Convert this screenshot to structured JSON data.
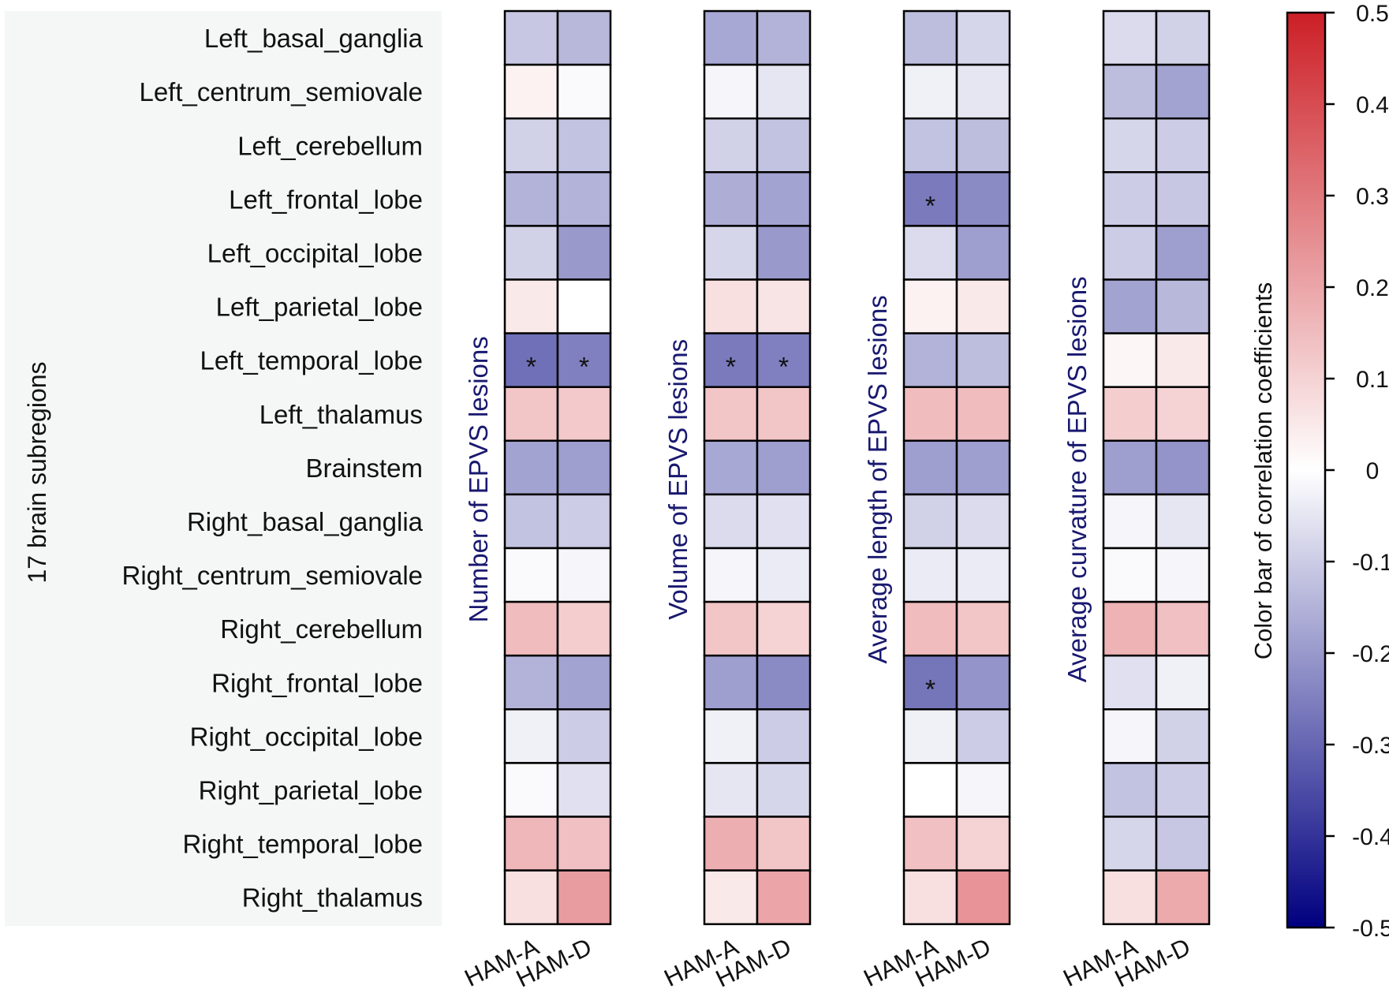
{
  "chart_data": {
    "type": "heatmap",
    "title": "",
    "ylabel": "17 brain subregions",
    "regions": [
      "Left_basal_ganglia",
      "Left_centrum_semiovale",
      "Left_cerebellum",
      "Left_frontal_lobe",
      "Left_occipital_lobe",
      "Left_parietal_lobe",
      "Left_temporal_lobe",
      "Left_thalamus",
      "Brainstem",
      "Right_basal_ganglia",
      "Right_centrum_semiovale",
      "Right_cerebellum",
      "Right_frontal_lobe",
      "Right_occipital_lobe",
      "Right_parietal_lobe",
      "Right_temporal_lobe",
      "Right_thalamus"
    ],
    "columns": [
      "HAM-A",
      "HAM-D"
    ],
    "significance_marker": "*",
    "panels": [
      {
        "label": "Number of EPVS lesions",
        "values": [
          [
            -0.11,
            -0.14
          ],
          [
            0.03,
            -0.01
          ],
          [
            -0.09,
            -0.12
          ],
          [
            -0.15,
            -0.15
          ],
          [
            -0.09,
            -0.2
          ],
          [
            0.05,
            0.0
          ],
          [
            -0.28,
            -0.25
          ],
          [
            0.13,
            0.12
          ],
          [
            -0.18,
            -0.19
          ],
          [
            -0.12,
            -0.1
          ],
          [
            -0.01,
            -0.02
          ],
          [
            0.15,
            0.11
          ],
          [
            -0.15,
            -0.18
          ],
          [
            -0.03,
            -0.1
          ],
          [
            -0.01,
            -0.06
          ],
          [
            0.16,
            0.14
          ],
          [
            0.07,
            0.22
          ]
        ],
        "significant": [
          [
            false,
            false
          ],
          [
            false,
            false
          ],
          [
            false,
            false
          ],
          [
            false,
            false
          ],
          [
            false,
            false
          ],
          [
            false,
            false
          ],
          [
            true,
            true
          ],
          [
            false,
            false
          ],
          [
            false,
            false
          ],
          [
            false,
            false
          ],
          [
            false,
            false
          ],
          [
            false,
            false
          ],
          [
            false,
            false
          ],
          [
            false,
            false
          ],
          [
            false,
            false
          ],
          [
            false,
            false
          ],
          [
            false,
            false
          ]
        ]
      },
      {
        "label": "Volume of EPVS lesions",
        "values": [
          [
            -0.17,
            -0.15
          ],
          [
            -0.02,
            -0.05
          ],
          [
            -0.09,
            -0.12
          ],
          [
            -0.16,
            -0.18
          ],
          [
            -0.08,
            -0.2
          ],
          [
            0.07,
            0.06
          ],
          [
            -0.26,
            -0.25
          ],
          [
            0.13,
            0.13
          ],
          [
            -0.17,
            -0.19
          ],
          [
            -0.07,
            -0.06
          ],
          [
            -0.02,
            -0.04
          ],
          [
            0.13,
            0.1
          ],
          [
            -0.19,
            -0.23
          ],
          [
            -0.03,
            -0.1
          ],
          [
            -0.05,
            -0.08
          ],
          [
            0.18,
            0.13
          ],
          [
            0.05,
            0.2
          ]
        ],
        "significant": [
          [
            false,
            false
          ],
          [
            false,
            false
          ],
          [
            false,
            false
          ],
          [
            false,
            false
          ],
          [
            false,
            false
          ],
          [
            false,
            false
          ],
          [
            true,
            true
          ],
          [
            false,
            false
          ],
          [
            false,
            false
          ],
          [
            false,
            false
          ],
          [
            false,
            false
          ],
          [
            false,
            false
          ],
          [
            false,
            false
          ],
          [
            false,
            false
          ],
          [
            false,
            false
          ],
          [
            false,
            false
          ],
          [
            false,
            false
          ]
        ]
      },
      {
        "label": "Average length of EPVS lesions",
        "values": [
          [
            -0.13,
            -0.08
          ],
          [
            -0.03,
            -0.05
          ],
          [
            -0.12,
            -0.13
          ],
          [
            -0.26,
            -0.23
          ],
          [
            -0.07,
            -0.19
          ],
          [
            0.03,
            0.05
          ],
          [
            -0.15,
            -0.13
          ],
          [
            0.15,
            0.15
          ],
          [
            -0.19,
            -0.19
          ],
          [
            -0.09,
            -0.07
          ],
          [
            -0.04,
            -0.04
          ],
          [
            0.15,
            0.13
          ],
          [
            -0.27,
            -0.21
          ],
          [
            -0.03,
            -0.1
          ],
          [
            0.0,
            -0.02
          ],
          [
            0.14,
            0.1
          ],
          [
            0.07,
            0.24
          ]
        ],
        "significant": [
          [
            false,
            false
          ],
          [
            false,
            false
          ],
          [
            false,
            false
          ],
          [
            true,
            false
          ],
          [
            false,
            false
          ],
          [
            false,
            false
          ],
          [
            false,
            false
          ],
          [
            false,
            false
          ],
          [
            false,
            false
          ],
          [
            false,
            false
          ],
          [
            false,
            false
          ],
          [
            false,
            false
          ],
          [
            true,
            false
          ],
          [
            false,
            false
          ],
          [
            false,
            false
          ],
          [
            false,
            false
          ],
          [
            false,
            false
          ]
        ]
      },
      {
        "label": "Average curvature of EPVS lesions",
        "values": [
          [
            -0.07,
            -0.09
          ],
          [
            -0.13,
            -0.18
          ],
          [
            -0.08,
            -0.1
          ],
          [
            -0.1,
            -0.11
          ],
          [
            -0.1,
            -0.19
          ],
          [
            -0.18,
            -0.14
          ],
          [
            0.02,
            0.05
          ],
          [
            0.11,
            0.1
          ],
          [
            -0.19,
            -0.21
          ],
          [
            -0.02,
            -0.05
          ],
          [
            -0.01,
            -0.02
          ],
          [
            0.17,
            0.14
          ],
          [
            -0.06,
            -0.03
          ],
          [
            -0.02,
            -0.09
          ],
          [
            -0.12,
            -0.1
          ],
          [
            -0.08,
            -0.11
          ],
          [
            0.07,
            0.19
          ]
        ],
        "significant": [
          [
            false,
            false
          ],
          [
            false,
            false
          ],
          [
            false,
            false
          ],
          [
            false,
            false
          ],
          [
            false,
            false
          ],
          [
            false,
            false
          ],
          [
            false,
            false
          ],
          [
            false,
            false
          ],
          [
            false,
            false
          ],
          [
            false,
            false
          ],
          [
            false,
            false
          ],
          [
            false,
            false
          ],
          [
            false,
            false
          ],
          [
            false,
            false
          ],
          [
            false,
            false
          ],
          [
            false,
            false
          ],
          [
            false,
            false
          ]
        ]
      }
    ],
    "colorbar": {
      "label": "Color bar of correlation coefficients",
      "range": [
        -0.5,
        0.5
      ],
      "ticks": [
        0.5,
        0.4,
        0.3,
        0.2,
        0.1,
        0,
        -0.1,
        -0.2,
        -0.3,
        -0.4,
        -0.5
      ],
      "tick_labels": [
        "0.5",
        "0.4",
        "0.3",
        "0.2",
        "0.1",
        "0",
        "-0.1",
        "-0.2",
        "-0.3",
        "-0.4",
        "-0.5"
      ],
      "color_low": "#000080",
      "color_mid": "#ffffff",
      "color_high": "#cc1f26"
    }
  },
  "colors": {
    "region_panel_bg": "#f4f7f5",
    "panel_label_color": "#191970",
    "text_color": "#111111",
    "grid_line": "#000000"
  }
}
